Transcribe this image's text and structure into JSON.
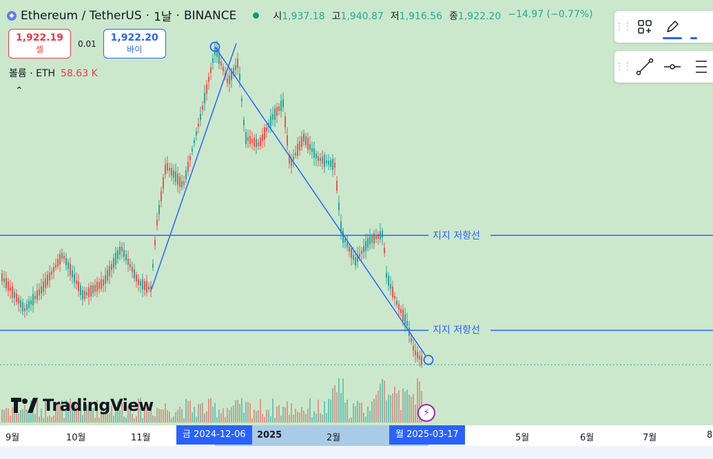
{
  "header": {
    "pair": "Ethereum / TetherUS",
    "interval": "1날",
    "exchange": "BINANCE",
    "sep": "·",
    "ohlc": {
      "open_label": "시",
      "open": "1,937.18",
      "high_label": "고",
      "high": "1,940.87",
      "low_label": "저",
      "low": "1,916.56",
      "close_label": "종",
      "close": "1,922.20",
      "change": "−14.97 (−0.77%)"
    }
  },
  "trade": {
    "sell_price": "1,922.19",
    "sell_label": "셀",
    "spread": "0.01",
    "buy_price": "1,922.20",
    "buy_label": "바이"
  },
  "volume": {
    "label": "볼륨 · ETH",
    "value": "58.63 K"
  },
  "collapse_icon": "chevron-up-icon",
  "drawings": {
    "hline_label_1": "지지 저항선",
    "hline_label_2": "지지 저항선",
    "line_color": "#2962ff"
  },
  "toolbar_top": {
    "icons": [
      "grip-icon",
      "add-widget-icon",
      "pencil-icon",
      "more-icon"
    ]
  },
  "toolbar_bottom": {
    "icons": [
      "grip-icon",
      "trend-line-icon",
      "horizontal-line-icon",
      "fib-icon"
    ]
  },
  "logo": {
    "text": "TradingView"
  },
  "time_axis": {
    "ticks": [
      "9월",
      "10월",
      "11월",
      "2025",
      "2월",
      "5월",
      "6월",
      "7월",
      "8"
    ],
    "selected_start": "금 2024-12-06",
    "selected_end": "월 2025-03-17"
  },
  "colors": {
    "bull": "#26a69a",
    "bear": "#ef5350",
    "background": "#cbe8cc",
    "accent": "#2962ff"
  }
}
